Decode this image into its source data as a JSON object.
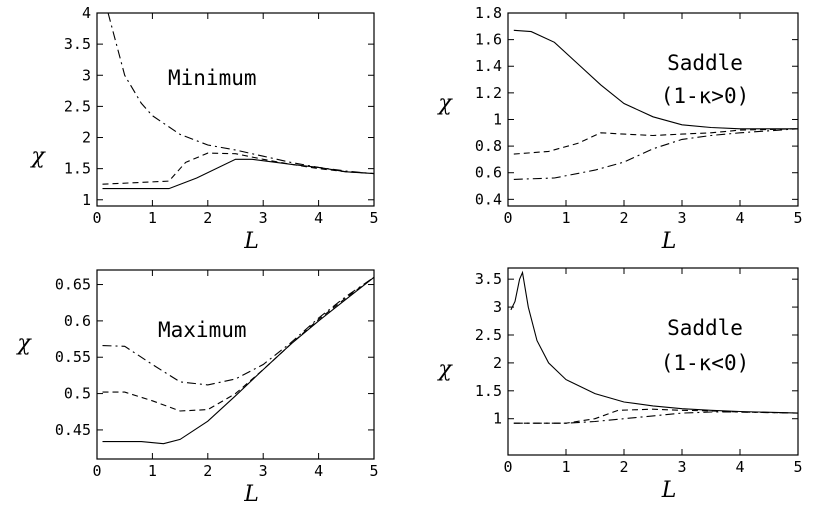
{
  "chart_data": [
    {
      "type": "line",
      "xlabel": "L",
      "ylabel": "χ",
      "xlim": [
        0,
        5
      ],
      "ylim": [
        0.9,
        4
      ],
      "xticks": [
        0,
        1,
        2,
        3,
        4,
        5
      ],
      "yticks": [
        1,
        1.5,
        2,
        2.5,
        3,
        3.5,
        4
      ],
      "ytick_labels": [
        "1",
        "1.5",
        "2",
        "2.5",
        "3",
        "3.5",
        "4"
      ],
      "annotation": [
        "Minimum"
      ],
      "series": [
        {
          "style": "solid",
          "x": [
            0.1,
            1.3,
            1.8,
            2.5,
            2.8,
            3.5,
            4.0,
            4.5,
            5.0
          ],
          "y": [
            1.18,
            1.18,
            1.35,
            1.65,
            1.65,
            1.57,
            1.52,
            1.45,
            1.42
          ]
        },
        {
          "style": "dashed",
          "x": [
            0.1,
            1.3,
            1.6,
            2.0,
            2.5,
            3.0,
            3.5,
            4.0,
            4.5,
            5.0
          ],
          "y": [
            1.25,
            1.3,
            1.6,
            1.75,
            1.74,
            1.65,
            1.57,
            1.5,
            1.45,
            1.42
          ]
        },
        {
          "style": "dashdot",
          "x": [
            0.2,
            0.5,
            0.8,
            1.0,
            1.5,
            2.0,
            2.5,
            3.0,
            3.5,
            4.0,
            4.5,
            5.0
          ],
          "y": [
            4.0,
            3.0,
            2.55,
            2.35,
            2.05,
            1.88,
            1.8,
            1.7,
            1.6,
            1.52,
            1.46,
            1.42
          ]
        }
      ]
    },
    {
      "type": "line",
      "xlabel": "L",
      "ylabel": "χ",
      "xlim": [
        0,
        5
      ],
      "ylim": [
        0.35,
        1.8
      ],
      "xticks": [
        0,
        1,
        2,
        3,
        4,
        5
      ],
      "yticks": [
        0.4,
        0.6,
        0.8,
        1,
        1.2,
        1.4,
        1.6,
        1.8
      ],
      "ytick_labels": [
        "0.4",
        "0.6",
        "0.8",
        "1",
        "1.2",
        "1.4",
        "1.6",
        "1.8"
      ],
      "annotation": [
        "Saddle",
        "(1-κ>0)"
      ],
      "series": [
        {
          "style": "solid",
          "x": [
            0.1,
            0.4,
            0.8,
            1.2,
            1.6,
            2.0,
            2.5,
            3.0,
            3.5,
            4.0,
            5.0
          ],
          "y": [
            1.67,
            1.66,
            1.58,
            1.42,
            1.26,
            1.12,
            1.02,
            0.96,
            0.94,
            0.93,
            0.93
          ]
        },
        {
          "style": "dashed",
          "x": [
            0.1,
            0.7,
            1.2,
            1.6,
            2.0,
            2.5,
            3.0,
            3.5,
            4.0,
            5.0
          ],
          "y": [
            0.74,
            0.76,
            0.82,
            0.9,
            0.89,
            0.88,
            0.89,
            0.9,
            0.92,
            0.93
          ]
        },
        {
          "style": "dashdot",
          "x": [
            0.1,
            0.8,
            1.5,
            2.0,
            2.5,
            3.0,
            3.5,
            4.0,
            5.0
          ],
          "y": [
            0.55,
            0.56,
            0.62,
            0.68,
            0.78,
            0.85,
            0.88,
            0.9,
            0.93
          ]
        }
      ]
    },
    {
      "type": "line",
      "xlabel": "L",
      "ylabel": "χ",
      "xlim": [
        0,
        5
      ],
      "ylim": [
        0.41,
        0.67
      ],
      "xticks": [
        0,
        1,
        2,
        3,
        4,
        5
      ],
      "yticks": [
        0.45,
        0.5,
        0.55,
        0.6,
        0.65
      ],
      "ytick_labels": [
        "0.45",
        "0.5",
        "0.55",
        "0.6",
        "0.65"
      ],
      "annotation": [
        "Maximum"
      ],
      "series": [
        {
          "style": "solid",
          "x": [
            0.1,
            0.8,
            1.2,
            1.5,
            2.0,
            2.5,
            3.0,
            3.5,
            4.0,
            4.5,
            5.0
          ],
          "y": [
            0.434,
            0.434,
            0.431,
            0.437,
            0.462,
            0.497,
            0.533,
            0.568,
            0.6,
            0.63,
            0.66
          ]
        },
        {
          "style": "dashed",
          "x": [
            0.1,
            0.5,
            1.0,
            1.5,
            2.0,
            2.5,
            3.0,
            3.5,
            4.0,
            4.5,
            5.0
          ],
          "y": [
            0.502,
            0.502,
            0.49,
            0.476,
            0.478,
            0.5,
            0.533,
            0.568,
            0.602,
            0.632,
            0.66
          ]
        },
        {
          "style": "dashdot",
          "x": [
            0.1,
            0.5,
            1.0,
            1.5,
            2.0,
            2.5,
            3.0,
            3.5,
            4.0,
            4.5,
            5.0
          ],
          "y": [
            0.566,
            0.565,
            0.54,
            0.516,
            0.512,
            0.52,
            0.54,
            0.57,
            0.604,
            0.634,
            0.66
          ]
        }
      ]
    },
    {
      "type": "line",
      "xlabel": "L",
      "ylabel": "χ",
      "xlim": [
        0,
        5
      ],
      "ylim": [
        0.35,
        3.7
      ],
      "xticks": [
        0,
        1,
        2,
        3,
        4,
        5
      ],
      "yticks": [
        1,
        1.5,
        2,
        2.5,
        3,
        3.5
      ],
      "ytick_labels": [
        "1",
        "1.5",
        "2",
        "2.5",
        "3",
        "3.5"
      ],
      "annotation": [
        "Saddle",
        "(1-κ<0)"
      ],
      "series": [
        {
          "style": "solid",
          "x": [
            0.05,
            0.12,
            0.2,
            0.25,
            0.35,
            0.5,
            0.7,
            1.0,
            1.5,
            2.0,
            2.5,
            3.0,
            3.5,
            4.0,
            5.0
          ],
          "y": [
            2.95,
            3.1,
            3.5,
            3.62,
            3.0,
            2.4,
            2.0,
            1.7,
            1.45,
            1.3,
            1.23,
            1.18,
            1.15,
            1.13,
            1.1
          ]
        },
        {
          "style": "dashed",
          "x": [
            0.1,
            1.0,
            1.5,
            1.9,
            2.5,
            3.0,
            3.5,
            4.0,
            5.0
          ],
          "y": [
            0.92,
            0.92,
            1.0,
            1.15,
            1.17,
            1.15,
            1.14,
            1.12,
            1.1
          ]
        },
        {
          "style": "dashdot",
          "x": [
            0.1,
            1.0,
            1.5,
            2.0,
            2.5,
            3.0,
            3.5,
            4.0,
            5.0
          ],
          "y": [
            0.92,
            0.92,
            0.95,
            1.0,
            1.05,
            1.1,
            1.12,
            1.12,
            1.1
          ]
        }
      ]
    }
  ]
}
